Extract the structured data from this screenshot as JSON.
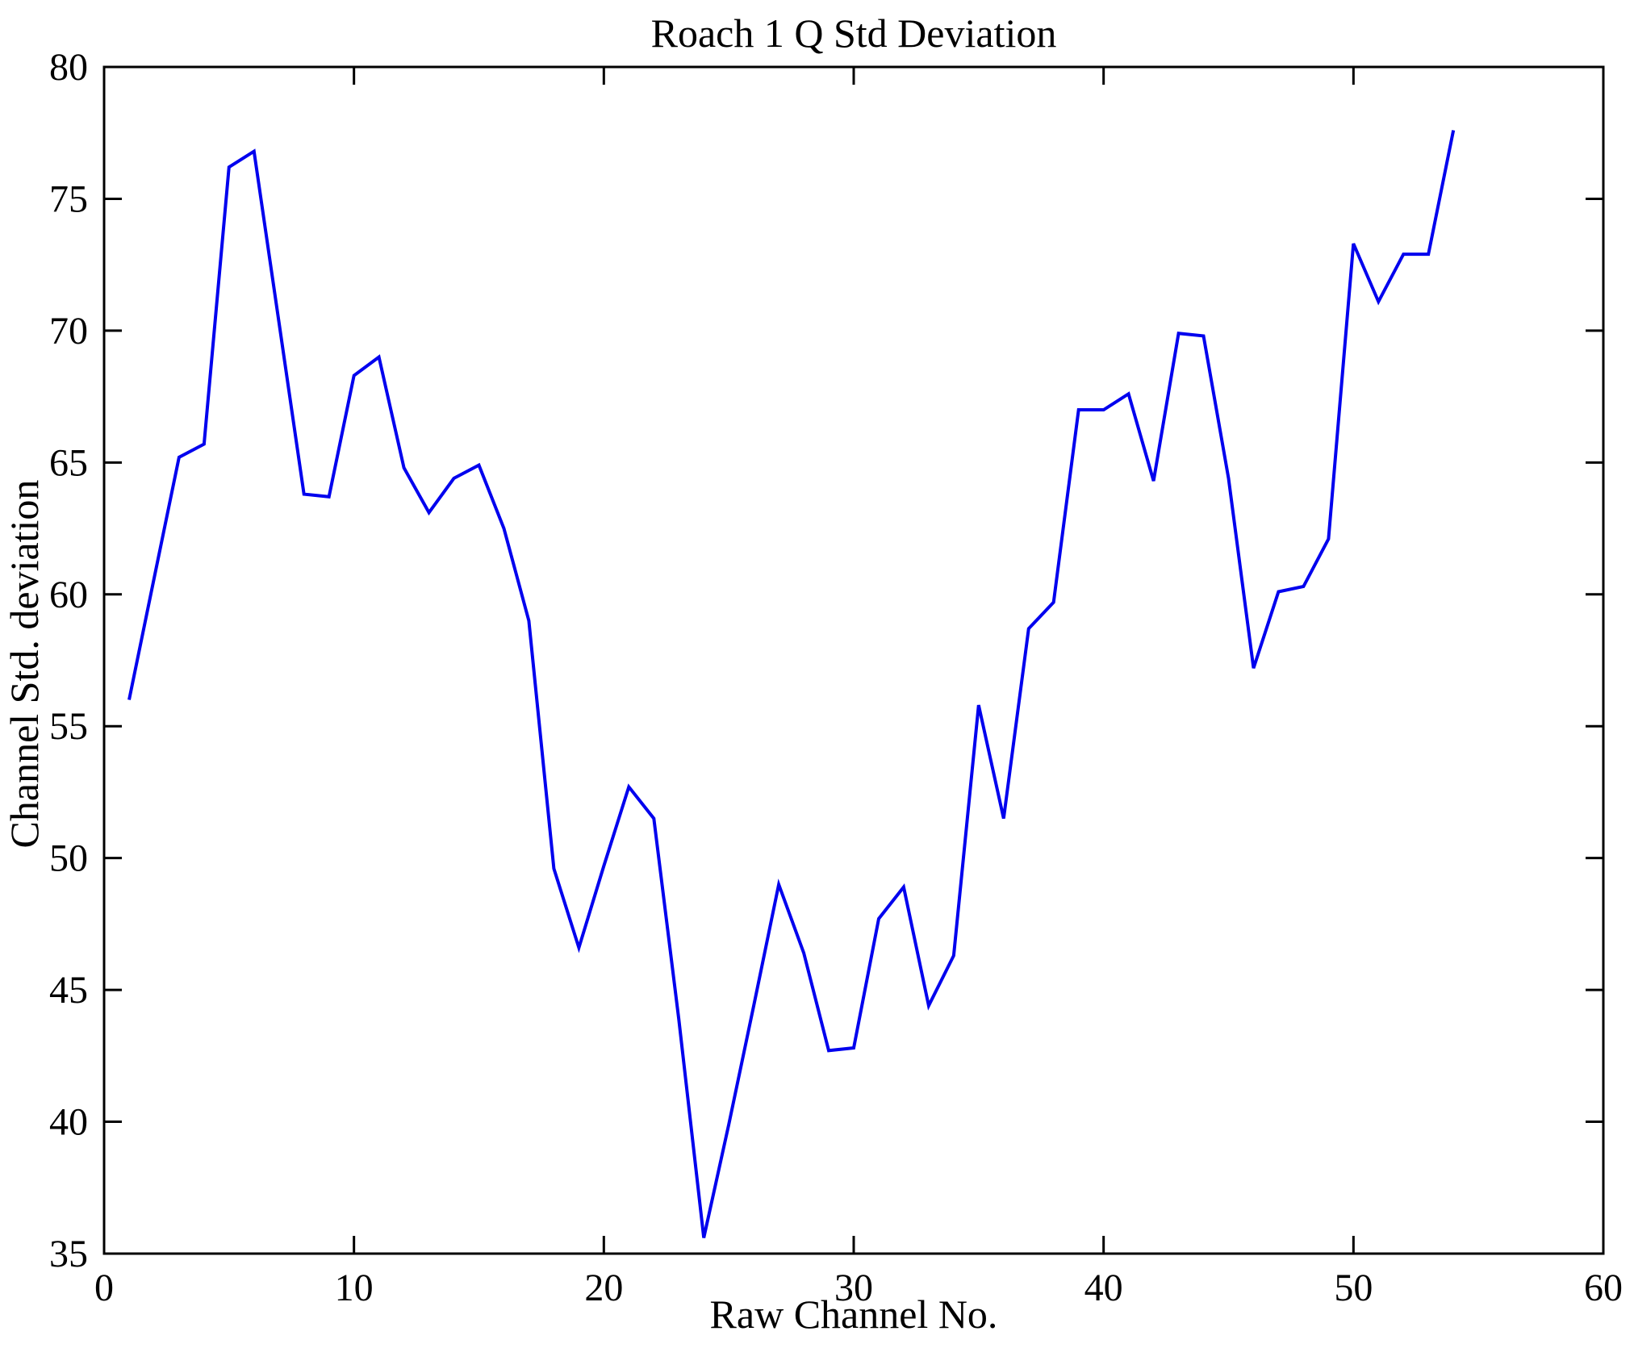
{
  "page": {
    "background": "#ffffff"
  },
  "chart": {
    "title": "Roach 1 Q Std Deviation",
    "xlabel": "Raw Channel No.",
    "ylabel": "Channel Std. deviation"
  },
  "chart_data": {
    "type": "line",
    "title": "Roach 1 Q Std Deviation",
    "xlabel": "Raw Channel No.",
    "ylabel": "Channel Std. deviation",
    "xlim": [
      0,
      60
    ],
    "ylim": [
      35,
      80
    ],
    "xticks": [
      0,
      10,
      20,
      30,
      40,
      50,
      60
    ],
    "yticks": [
      35,
      40,
      45,
      50,
      55,
      60,
      65,
      70,
      75,
      80
    ],
    "grid": false,
    "legend": null,
    "line_color": "#0000ee",
    "axis_color": "#000000",
    "x": [
      1,
      2,
      3,
      4,
      5,
      6,
      7,
      8,
      9,
      10,
      11,
      12,
      13,
      14,
      15,
      16,
      17,
      18,
      19,
      20,
      21,
      22,
      23,
      24,
      25,
      26,
      27,
      28,
      29,
      30,
      31,
      32,
      33,
      34,
      35,
      36,
      37,
      38,
      39,
      40,
      41,
      42,
      43,
      44,
      45,
      46,
      47,
      48,
      49,
      50,
      51,
      52,
      53,
      54
    ],
    "y": [
      56.0,
      60.6,
      65.2,
      65.7,
      76.2,
      76.8,
      70.3,
      63.8,
      63.7,
      68.3,
      69.0,
      64.8,
      63.1,
      64.4,
      64.9,
      62.5,
      59.0,
      49.6,
      46.6,
      49.7,
      52.7,
      51.5,
      43.9,
      35.6,
      39.9,
      44.4,
      49.0,
      46.4,
      42.7,
      42.8,
      47.7,
      48.9,
      44.4,
      46.3,
      55.8,
      51.5,
      58.7,
      59.7,
      67.0,
      67.0,
      67.6,
      64.3,
      69.9,
      69.8,
      64.4,
      57.2,
      60.1,
      60.3,
      62.1,
      73.3,
      71.1,
      72.9,
      72.9,
      77.6
    ]
  }
}
